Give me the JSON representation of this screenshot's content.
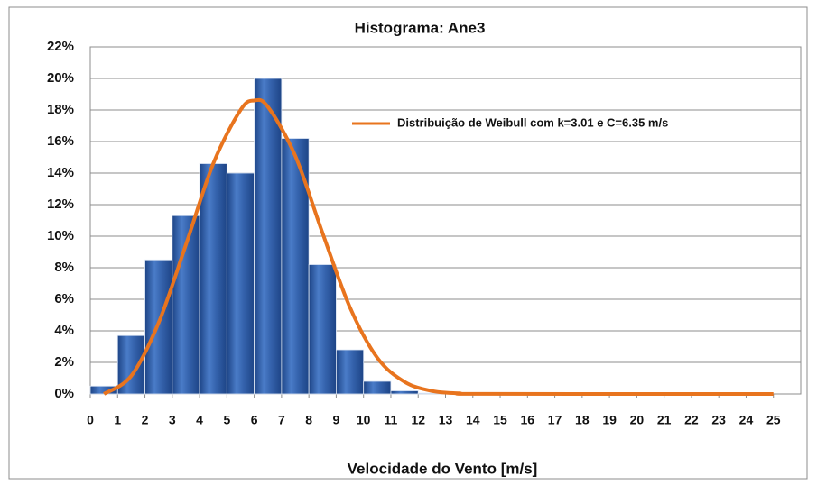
{
  "chart_data": {
    "type": "histogram",
    "title": "Histograma: Ane3",
    "xlabel": "Velocidade do Vento [m/s]",
    "bins": [
      0,
      1,
      2,
      3,
      4,
      5,
      6,
      7,
      8,
      9,
      10,
      11,
      12,
      13,
      14,
      15,
      16,
      17,
      18,
      19,
      20,
      21,
      22,
      23,
      24,
      25
    ],
    "values": [
      0.5,
      3.7,
      8.5,
      11.3,
      14.6,
      14.0,
      20.0,
      16.2,
      8.2,
      2.8,
      0.8,
      0.2,
      0.05,
      0,
      0,
      0,
      0,
      0,
      0,
      0,
      0,
      0,
      0,
      0,
      0
    ],
    "color": "#2e5fa8",
    "xlim": [
      0,
      26
    ],
    "ylim": [
      0,
      22
    ],
    "xticks": [
      0,
      1,
      2,
      3,
      4,
      5,
      6,
      7,
      8,
      9,
      10,
      11,
      12,
      13,
      14,
      15,
      16,
      17,
      18,
      19,
      20,
      21,
      22,
      23,
      24,
      25
    ],
    "yticks": [
      {
        "value": 0,
        "label": "0%"
      },
      {
        "value": 2,
        "label": "2%"
      },
      {
        "value": 4,
        "label": "4%"
      },
      {
        "value": 6,
        "label": "6%"
      },
      {
        "value": 8,
        "label": "8%"
      },
      {
        "value": 10,
        "label": "10%"
      },
      {
        "value": 12,
        "label": "12%"
      },
      {
        "value": 14,
        "label": "14%"
      },
      {
        "value": 16,
        "label": "16%"
      },
      {
        "value": 18,
        "label": "18%"
      },
      {
        "value": 20,
        "label": "20%"
      },
      {
        "value": 22,
        "label": "22%"
      }
    ],
    "grid": true,
    "legend": "upper right",
    "overlay": {
      "type": "line",
      "name": "Distribuição de Weibull com k=3.01 e C=6.35 m/s",
      "color": "#e8741e",
      "x": [
        0.5,
        1.5,
        2.5,
        3.5,
        4.5,
        5.5,
        6,
        6.5,
        7.5,
        8.5,
        9.5,
        10.5,
        11.5,
        12.5,
        13.5,
        14.5,
        25
      ],
      "values": [
        0,
        1.15,
        4.51,
        9.46,
        14.6,
        18.0,
        18.6,
        18.2,
        15.1,
        10.2,
        5.5,
        2.3,
        0.77,
        0.19,
        0.04,
        0.005,
        0
      ]
    }
  }
}
